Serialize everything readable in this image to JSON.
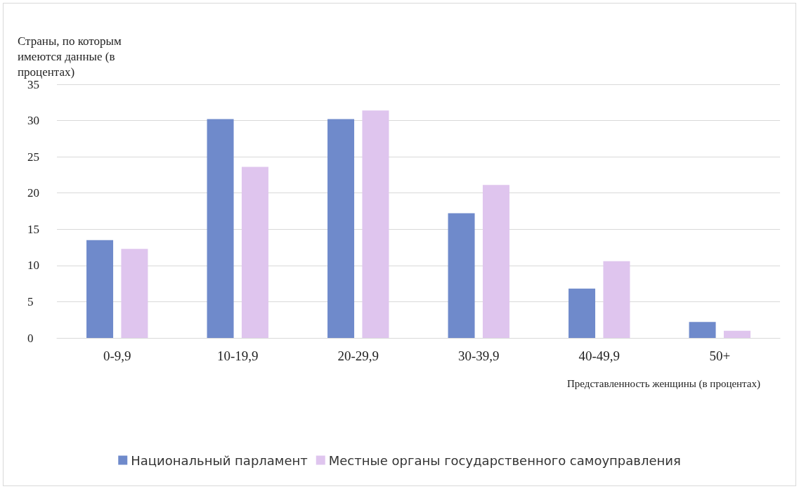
{
  "chart_data": {
    "type": "bar",
    "ylabel": "Страны, по которым имеются данные (в процентах)",
    "xlabel": "Представленность женщины (в процентах)",
    "categories": [
      "0-9,9",
      "10-19,9",
      "20-29,9",
      "30-39,9",
      "40-49,9",
      "50+"
    ],
    "series": [
      {
        "name": "Национальный парламент",
        "color": "#6f8acb",
        "values": [
          13.5,
          30.2,
          30.2,
          17.2,
          6.8,
          2.2
        ]
      },
      {
        "name": "Местные органы государственного самоуправления",
        "color": "#dfc5ee",
        "values": [
          12.3,
          23.6,
          31.4,
          21.1,
          10.6,
          1.0
        ]
      }
    ],
    "ylim": [
      0,
      35
    ],
    "yticks": [
      0,
      5,
      10,
      15,
      20,
      25,
      30,
      35
    ],
    "grid": "y",
    "legend": "bottom"
  }
}
